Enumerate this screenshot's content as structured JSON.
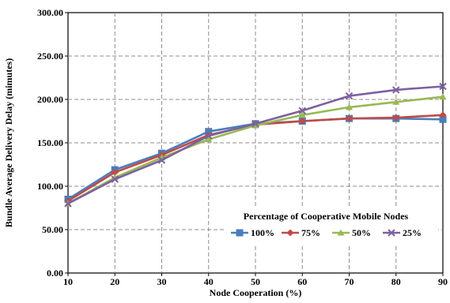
{
  "chart_data": {
    "type": "line",
    "xlabel": "Node Cooperation (%)",
    "ylabel": "Bundle Average Delivery Delay (mimutes)",
    "x": [
      10,
      20,
      30,
      40,
      50,
      60,
      70,
      80,
      90
    ],
    "x_ticks": [
      "10",
      "20",
      "30",
      "40",
      "50",
      "60",
      "70",
      "80",
      "90"
    ],
    "y_ticks": [
      "0.00",
      "50.00",
      "100.00",
      "150.00",
      "200.00",
      "250.00",
      "300.00"
    ],
    "ylim": [
      0,
      300
    ],
    "xlim": [
      10,
      90
    ],
    "grid": true,
    "legend": {
      "title": "Percentage of Cooperative Mobile Nodes",
      "placement": "bottom-right"
    },
    "series": [
      {
        "name": "100%",
        "color": "#4a7ebb",
        "marker": "square",
        "values": [
          85,
          119,
          138,
          163,
          172,
          175,
          178,
          178,
          177
        ]
      },
      {
        "name": "75%",
        "color": "#be4b48",
        "marker": "diamond",
        "values": [
          83,
          116,
          136,
          159,
          171,
          175,
          178,
          179,
          182
        ]
      },
      {
        "name": "50%",
        "color": "#98b954",
        "marker": "triangle",
        "values": [
          80,
          110,
          133,
          154,
          170,
          182,
          191,
          197,
          203
        ]
      },
      {
        "name": "25%",
        "color": "#7d60a0",
        "marker": "cross",
        "values": [
          80,
          108,
          130,
          158,
          172,
          187,
          204,
          211,
          215
        ]
      }
    ]
  }
}
